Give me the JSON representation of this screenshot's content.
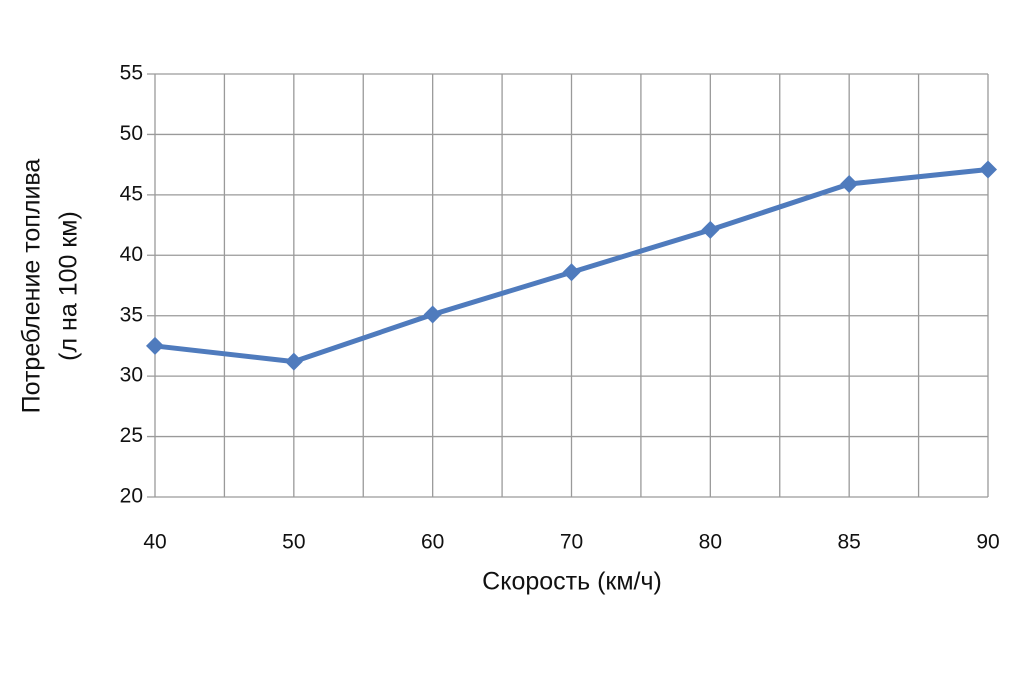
{
  "chart_data": {
    "type": "line",
    "x_label": "Скорость (км/ч)",
    "y_label": [
      "Потребление топлива",
      "(л на 100 км)"
    ],
    "categories": [
      "40",
      "50",
      "60",
      "70",
      "80",
      "85",
      "90"
    ],
    "series": [
      {
        "name": "Потребление топлива",
        "color": "#4f7bbd",
        "values": [
          32.5,
          31.2,
          35.1,
          38.6,
          42.1,
          45.9,
          47.1
        ]
      }
    ],
    "ylim": [
      20,
      55
    ],
    "yticks": [
      20,
      25,
      30,
      35,
      40,
      45,
      50,
      55
    ],
    "grid": true
  }
}
